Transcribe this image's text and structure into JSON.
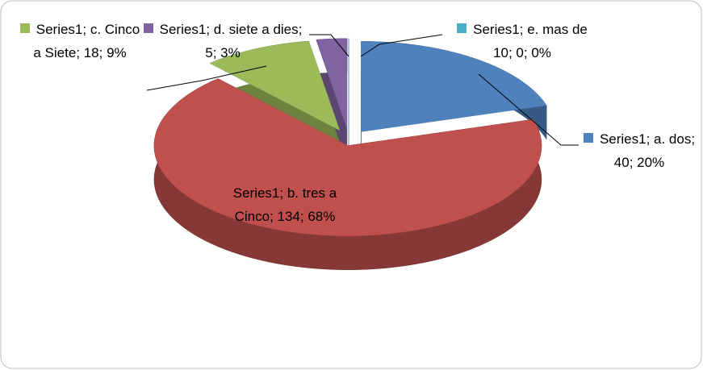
{
  "chart_data": {
    "type": "pie3d",
    "categories": [
      "a. dos",
      "b. tres a Cinco",
      "c. Cinco a Siete",
      "d. siete a dies",
      "e. mas de 10"
    ],
    "series": [
      {
        "name": "Series1",
        "values": [
          40,
          134,
          18,
          5,
          0
        ],
        "colors": [
          "#4f81bd",
          "#c0504d",
          "#9bbb59",
          "#8064a2",
          "#4bacc6"
        ],
        "value_labels": [
          "Series1; a. dos; 40; 20%",
          "Series1; b. tres a Cinco; 134; 68%",
          "Series1; c. Cinco a Siete; 18; 9%",
          "Series1; d. siete a dies; 5; 3%",
          "Series1; e. mas de 10; 0; 0%"
        ]
      }
    ]
  }
}
